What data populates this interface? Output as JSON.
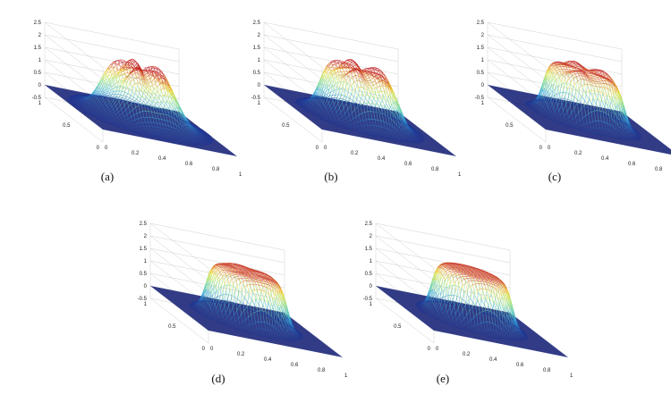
{
  "figure": {
    "panels": [
      {
        "caption": "(a)",
        "shape": "smooth-bump",
        "top_wobble": 0.3,
        "side_ripple": 0.1,
        "sharpness": 0.35
      },
      {
        "caption": "(b)",
        "shape": "wavy-plateau",
        "top_wobble": 0.22,
        "side_ripple": 0.05,
        "sharpness": 0.55
      },
      {
        "caption": "(c)",
        "shape": "flat-plateau",
        "top_wobble": 0.1,
        "side_ripple": 0.02,
        "sharpness": 0.8
      },
      {
        "caption": "(d)",
        "shape": "flat-plateau",
        "top_wobble": 0.02,
        "side_ripple": 0.0,
        "sharpness": 0.85
      },
      {
        "caption": "(e)",
        "shape": "flat-plateau",
        "top_wobble": 0.0,
        "side_ripple": 0.0,
        "sharpness": 0.9
      }
    ],
    "z_ticks": [
      "2.5",
      "2",
      "1.5",
      "1",
      "0.5",
      "0",
      "-0.5"
    ],
    "x_ticks": [
      "0",
      "0.2",
      "0.4",
      "0.6",
      "0.8",
      "1"
    ],
    "y_ticks": [
      "1",
      "0.5",
      "0"
    ],
    "colors": {
      "low": "#1a2a8c",
      "mid_low": "#2f9fe0",
      "mid": "#7fe0a0",
      "mid_high": "#f3e23a",
      "high": "#c0171b",
      "base": "#27317f"
    }
  }
}
